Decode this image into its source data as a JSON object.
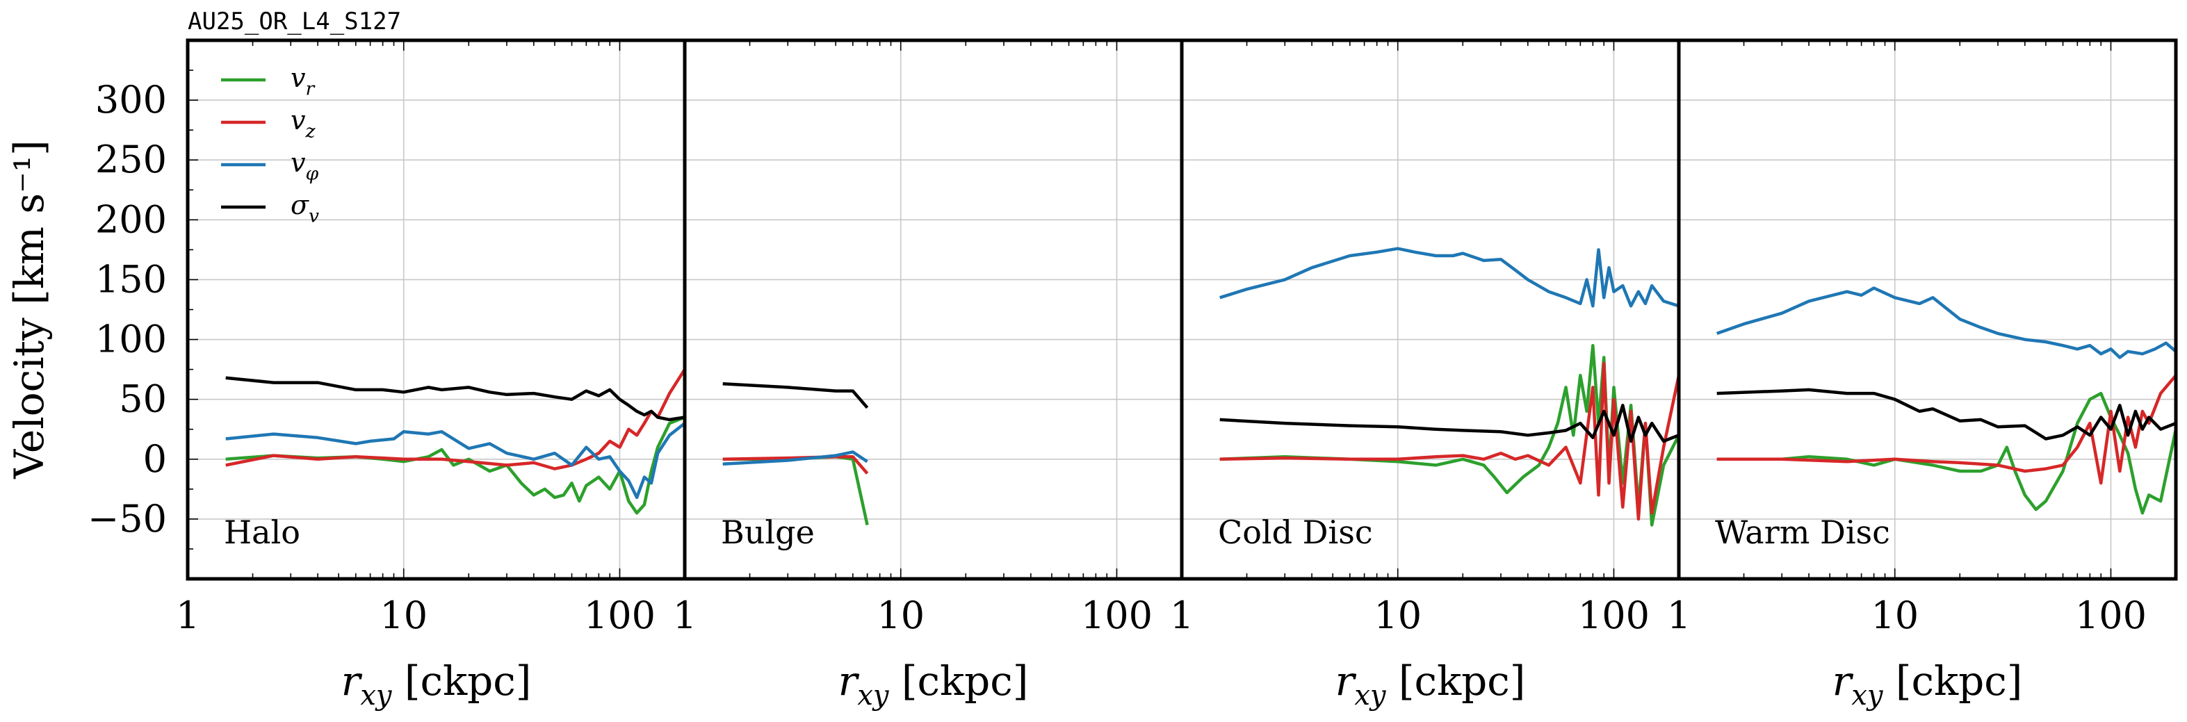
{
  "figure": {
    "title": "AU25_OR_L4_S127"
  },
  "chart_data": {
    "type": "line",
    "xscale": "log",
    "xlim": [
      1,
      200
    ],
    "ylim": [
      -100,
      350
    ],
    "ylabel": "Velocity [km s⁻¹]",
    "xlabel": "r_xy [ckpc]",
    "grid": true,
    "legend": {
      "placement": "top-left",
      "panel": 0
    },
    "x_ticks": [
      1,
      10,
      100
    ],
    "x_tick_labels": [
      "1",
      "10",
      "100"
    ],
    "y_ticks": [
      -50,
      0,
      50,
      100,
      150,
      200,
      250,
      300
    ],
    "y_tick_labels": [
      "−50",
      "0",
      "50",
      "100",
      "150",
      "200",
      "250",
      "300"
    ],
    "series_styles": [
      {
        "key": "vr",
        "name": "v_r",
        "color": "#2ca02c"
      },
      {
        "key": "vz",
        "name": "v_z",
        "color": "#d62728"
      },
      {
        "key": "vphi",
        "name": "v_φ",
        "color": "#1f77b4"
      },
      {
        "key": "sigma",
        "name": "σ_v",
        "color": "#000000"
      }
    ],
    "panels": [
      {
        "label": "Halo",
        "series": {
          "vr": {
            "x": [
              1.5,
              2.5,
              4,
              6,
              8,
              10,
              13,
              15,
              17,
              20,
              25,
              30,
              35,
              40,
              45,
              50,
              55,
              60,
              65,
              70,
              80,
              90,
              100,
              110,
              120,
              130,
              140,
              150,
              170,
              200
            ],
            "y": [
              0,
              3,
              1,
              2,
              0,
              -2,
              2,
              8,
              -5,
              0,
              -10,
              -5,
              -20,
              -30,
              -25,
              -32,
              -30,
              -20,
              -35,
              -22,
              -15,
              -25,
              -10,
              -35,
              -45,
              -38,
              -10,
              10,
              30,
              35
            ]
          },
          "vz": {
            "x": [
              1.5,
              2.5,
              4,
              6,
              8,
              10,
              15,
              20,
              30,
              40,
              50,
              60,
              70,
              80,
              90,
              100,
              110,
              120,
              130,
              140,
              150,
              170,
              200
            ],
            "y": [
              -5,
              3,
              0,
              2,
              1,
              0,
              0,
              -2,
              -5,
              -3,
              -8,
              -5,
              0,
              5,
              15,
              10,
              25,
              20,
              30,
              40,
              35,
              55,
              75
            ]
          },
          "vphi": {
            "x": [
              1.5,
              2.5,
              4,
              6,
              7,
              9,
              10,
              13,
              15,
              20,
              25,
              30,
              40,
              50,
              60,
              70,
              80,
              90,
              100,
              110,
              120,
              130,
              140,
              150,
              170,
              200
            ],
            "y": [
              17,
              21,
              18,
              13,
              15,
              17,
              23,
              21,
              23,
              9,
              13,
              5,
              0,
              5,
              -5,
              10,
              0,
              2,
              -10,
              -18,
              -32,
              -15,
              -20,
              5,
              20,
              30
            ]
          },
          "sigma": {
            "x": [
              1.5,
              2.5,
              4,
              6,
              8,
              10,
              13,
              15,
              20,
              25,
              30,
              40,
              50,
              60,
              70,
              80,
              90,
              100,
              110,
              120,
              130,
              140,
              150,
              170,
              200
            ],
            "y": [
              68,
              64,
              64,
              58,
              58,
              56,
              60,
              58,
              60,
              56,
              54,
              55,
              52,
              50,
              57,
              53,
              58,
              50,
              45,
              40,
              37,
              40,
              35,
              33,
              35
            ]
          }
        }
      },
      {
        "label": "Bulge",
        "series": {
          "vr": {
            "x": [
              1.5,
              3,
              5,
              6,
              7
            ],
            "y": [
              0,
              0,
              2,
              0,
              -55
            ]
          },
          "vz": {
            "x": [
              1.5,
              3,
              5,
              6,
              7
            ],
            "y": [
              0,
              1,
              2,
              2,
              -12
            ]
          },
          "vphi": {
            "x": [
              1.5,
              3,
              5,
              6,
              7
            ],
            "y": [
              -4,
              -1,
              3,
              6,
              -2
            ]
          },
          "sigma": {
            "x": [
              1.5,
              3,
              5,
              6,
              7
            ],
            "y": [
              63,
              60,
              57,
              57,
              43
            ]
          }
        }
      },
      {
        "label": "Cold Disc",
        "series": {
          "vr": {
            "x": [
              1.5,
              3,
              6,
              10,
              15,
              20,
              25,
              28,
              32,
              38,
              45,
              50,
              55,
              60,
              65,
              70,
              75,
              80,
              85,
              90,
              95,
              100,
              110,
              120,
              130,
              140,
              150,
              170,
              200
            ],
            "y": [
              0,
              2,
              0,
              -2,
              -5,
              0,
              -5,
              -15,
              -28,
              -15,
              -5,
              10,
              30,
              60,
              20,
              70,
              40,
              95,
              30,
              85,
              -10,
              60,
              -20,
              45,
              -40,
              30,
              -55,
              -5,
              20
            ]
          },
          "vz": {
            "x": [
              1.5,
              3,
              6,
              10,
              15,
              20,
              25,
              30,
              35,
              40,
              50,
              60,
              70,
              80,
              85,
              90,
              95,
              100,
              110,
              120,
              130,
              140,
              150,
              170,
              200
            ],
            "y": [
              0,
              1,
              0,
              0,
              2,
              3,
              0,
              5,
              0,
              3,
              -5,
              10,
              -20,
              60,
              -30,
              80,
              -20,
              50,
              -40,
              40,
              -50,
              30,
              -45,
              10,
              70
            ]
          },
          "vphi": {
            "x": [
              1.5,
              2,
              3,
              4,
              6,
              8,
              10,
              12,
              15,
              18,
              20,
              25,
              30,
              35,
              40,
              50,
              60,
              70,
              75,
              80,
              85,
              90,
              95,
              100,
              110,
              120,
              130,
              140,
              150,
              170,
              200
            ],
            "y": [
              135,
              142,
              150,
              160,
              170,
              173,
              176,
              173,
              170,
              170,
              172,
              166,
              167,
              158,
              150,
              140,
              135,
              130,
              150,
              128,
              175,
              135,
              160,
              140,
              145,
              128,
              140,
              130,
              145,
              132,
              128
            ]
          },
          "sigma": {
            "x": [
              1.5,
              3,
              6,
              10,
              15,
              20,
              30,
              40,
              50,
              60,
              70,
              80,
              90,
              100,
              110,
              120,
              130,
              140,
              150,
              170,
              200
            ],
            "y": [
              33,
              30,
              28,
              27,
              25,
              24,
              23,
              20,
              22,
              24,
              30,
              18,
              40,
              20,
              45,
              15,
              35,
              20,
              30,
              15,
              20
            ]
          }
        }
      },
      {
        "label": "Warm Disc",
        "series": {
          "vr": {
            "x": [
              1.5,
              3,
              4,
              6,
              8,
              10,
              15,
              20,
              25,
              30,
              33,
              36,
              40,
              45,
              50,
              60,
              70,
              80,
              90,
              100,
              110,
              120,
              130,
              140,
              150,
              170,
              200
            ],
            "y": [
              0,
              0,
              2,
              0,
              -5,
              0,
              -5,
              -10,
              -10,
              -5,
              10,
              -10,
              -30,
              -42,
              -35,
              -10,
              30,
              50,
              55,
              35,
              20,
              5,
              -25,
              -45,
              -30,
              -35,
              25
            ]
          },
          "vz": {
            "x": [
              1.5,
              3,
              6,
              10,
              15,
              20,
              30,
              40,
              50,
              60,
              70,
              80,
              90,
              100,
              110,
              120,
              130,
              140,
              150,
              170,
              200
            ],
            "y": [
              0,
              0,
              -2,
              0,
              -2,
              -3,
              -5,
              -10,
              -8,
              -5,
              10,
              30,
              -20,
              40,
              -10,
              35,
              10,
              40,
              30,
              55,
              70
            ]
          },
          "vphi": {
            "x": [
              1.5,
              2,
              3,
              4,
              6,
              7,
              8,
              10,
              13,
              15,
              20,
              25,
              30,
              40,
              50,
              60,
              70,
              80,
              90,
              100,
              110,
              120,
              140,
              160,
              180,
              200
            ],
            "y": [
              105,
              113,
              122,
              132,
              140,
              137,
              143,
              135,
              130,
              135,
              117,
              110,
              105,
              100,
              98,
              95,
              92,
              95,
              88,
              92,
              85,
              90,
              88,
              92,
              97,
              90
            ]
          },
          "sigma": {
            "x": [
              1.5,
              3,
              4,
              6,
              8,
              10,
              13,
              15,
              20,
              25,
              30,
              40,
              50,
              60,
              70,
              80,
              90,
              100,
              110,
              120,
              130,
              140,
              150,
              170,
              200
            ],
            "y": [
              55,
              57,
              58,
              55,
              55,
              50,
              40,
              42,
              32,
              33,
              27,
              28,
              17,
              20,
              27,
              20,
              35,
              25,
              45,
              20,
              40,
              25,
              35,
              25,
              30
            ]
          }
        }
      }
    ]
  }
}
